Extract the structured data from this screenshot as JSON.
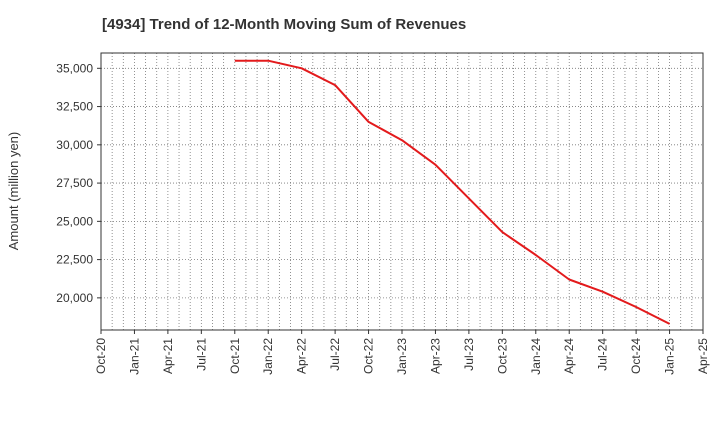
{
  "chart_data": {
    "type": "line",
    "title": "[4934]  Trend of 12-Month Moving Sum of Revenues",
    "xlabel": "",
    "ylabel": "Amount (million yen)",
    "x_ticks": [
      "Oct-20",
      "Jan-21",
      "Apr-21",
      "Jul-21",
      "Oct-21",
      "Jan-22",
      "Apr-22",
      "Jul-22",
      "Oct-22",
      "Jan-23",
      "Apr-23",
      "Jul-23",
      "Oct-23",
      "Jan-24",
      "Apr-24",
      "Jul-24",
      "Oct-24",
      "Jan-25",
      "Apr-25"
    ],
    "y_ticks": [
      20000,
      22500,
      25000,
      27500,
      30000,
      32500,
      35000
    ],
    "y_tick_labels": [
      "20,000",
      "22,500",
      "25,000",
      "27,500",
      "30,000",
      "32,500",
      "35,000"
    ],
    "ylim": [
      17900,
      36000
    ],
    "grid": true,
    "series": [
      {
        "color": "#e31a1c",
        "x": [
          "Oct-21",
          "Jan-22",
          "Apr-22",
          "Jul-22",
          "Oct-22",
          "Jan-23",
          "Apr-23",
          "Jul-23",
          "Oct-23",
          "Jan-24",
          "Apr-24",
          "Jul-24",
          "Oct-24",
          "Jan-25"
        ],
        "values": [
          35500,
          35500,
          35000,
          33900,
          31500,
          30300,
          28700,
          26500,
          24300,
          22800,
          21200,
          20400,
          19400,
          18300
        ]
      }
    ]
  }
}
